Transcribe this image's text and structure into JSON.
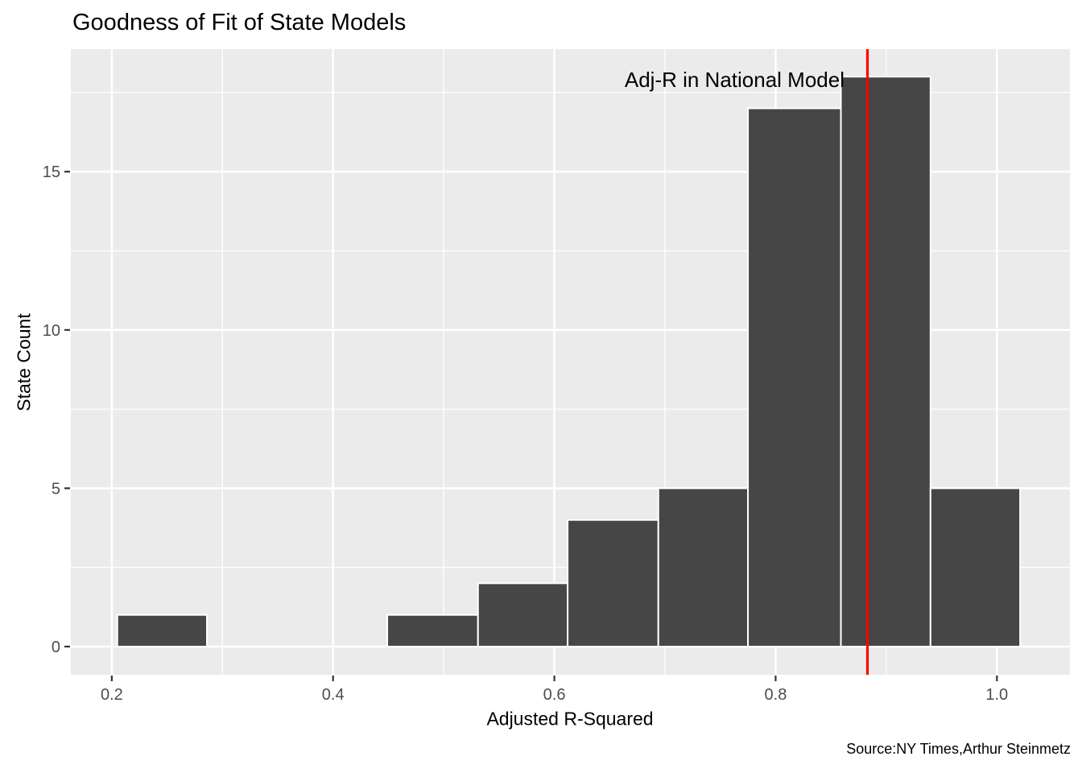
{
  "title": "Goodness of Fit of State Models",
  "caption": "Source:NY Times,Arthur Steinmetz",
  "chart_data": {
    "type": "bar",
    "subtype": "histogram",
    "title": "Goodness of Fit of State Models",
    "xlabel": "Adjusted R-Squared",
    "ylabel": "State Count",
    "bin_edges": [
      0.205,
      0.286,
      0.368,
      0.449,
      0.531,
      0.612,
      0.694,
      0.775,
      0.859,
      0.94,
      1.021
    ],
    "counts": [
      1,
      0,
      0,
      1,
      2,
      4,
      5,
      17,
      18,
      5
    ],
    "xlim": [
      0.163,
      1.066
    ],
    "ylim": [
      -0.89,
      18.87
    ],
    "x_ticks": {
      "values": [
        0.2,
        0.4,
        0.6,
        0.8,
        1.0
      ],
      "labels": [
        "0.2",
        "0.4",
        "0.6",
        "0.8",
        "1.0"
      ],
      "minor": [
        0.3,
        0.5,
        0.7,
        0.9
      ]
    },
    "y_ticks": {
      "values": [
        0,
        5,
        10,
        15
      ],
      "labels": [
        "0",
        "5",
        "10",
        "15"
      ],
      "minor": [
        2.5,
        7.5,
        12.5,
        17.5
      ]
    },
    "grid": "on",
    "legend": "none",
    "vline": {
      "x": 0.883,
      "label": "Adj-R in National Model"
    },
    "colors": {
      "bar_fill": "#464646",
      "bar_stroke": "#FFFFFF",
      "panel_bg": "#EBEBEB",
      "grid": "#FFFFFF",
      "vline": "#FF0000",
      "tick_mark": "#333333",
      "tick_label": "#4D4D4D",
      "text": "#000000",
      "background": "#FFFFFF"
    }
  }
}
